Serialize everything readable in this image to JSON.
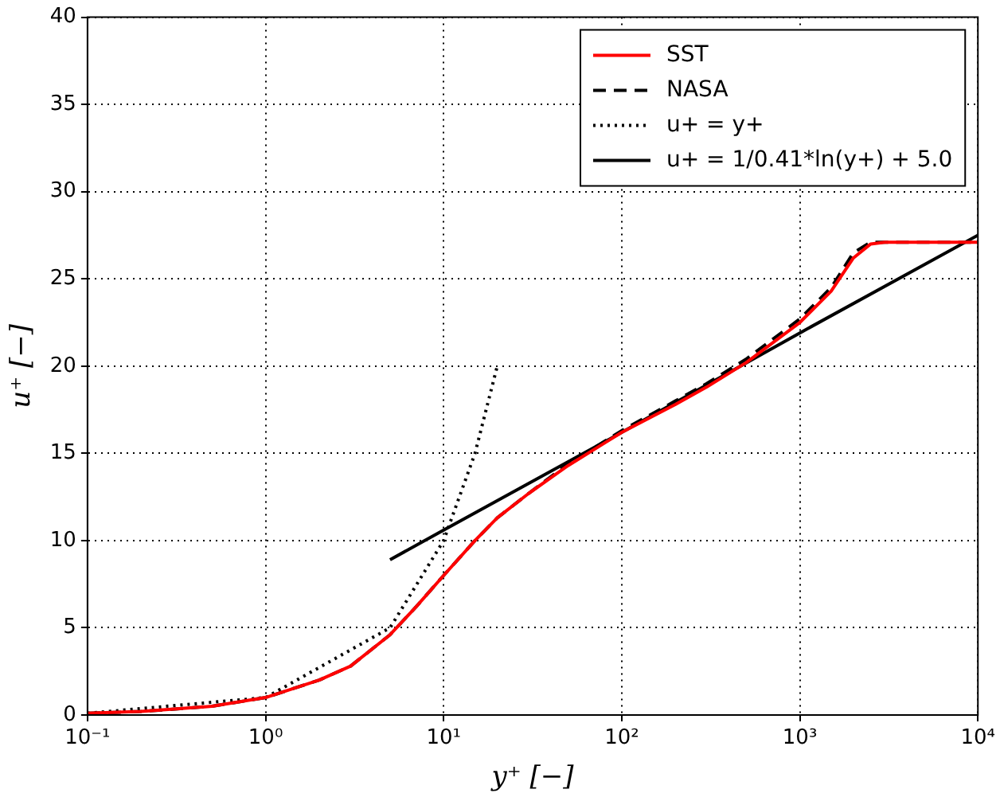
{
  "chart_data": {
    "type": "line",
    "xlabel": "y⁺ [−]",
    "ylabel": "u⁺ [−]",
    "log": "x",
    "grid": true,
    "legend": "top right",
    "marker": "none",
    "xlim": [
      0.1,
      10000
    ],
    "xticks": [
      {
        "value": 0.1,
        "label": "10⁻¹"
      },
      {
        "value": 1,
        "label": "10⁰"
      },
      {
        "value": 10,
        "label": "10¹"
      },
      {
        "value": 100,
        "label": "10²"
      },
      {
        "value": 1000,
        "label": "10³"
      },
      {
        "value": 10000,
        "label": "10⁴"
      }
    ],
    "ylim": [
      0,
      40
    ],
    "yticks": [
      0,
      5,
      10,
      15,
      20,
      25,
      30,
      35,
      40
    ],
    "series": [
      {
        "name": "SST",
        "color": "#ff0000",
        "line_style": "solid",
        "x": [
          0.1,
          0.2,
          0.5,
          1,
          2,
          3,
          5,
          7,
          10,
          15,
          20,
          30,
          50,
          100,
          200,
          300,
          500,
          1000,
          1500,
          2000,
          2500,
          3000,
          10000
        ],
        "values": [
          0.1,
          0.2,
          0.5,
          1.0,
          2.0,
          2.8,
          4.6,
          6.2,
          8.0,
          10.0,
          11.3,
          12.7,
          14.3,
          16.2,
          17.8,
          18.8,
          20.2,
          22.5,
          24.3,
          26.2,
          27.0,
          27.1,
          27.1
        ]
      },
      {
        "name": "NASA",
        "color": "#000000",
        "line_style": "dashed",
        "x": [
          0.1,
          0.2,
          0.5,
          1,
          2,
          3,
          5,
          7,
          10,
          15,
          20,
          30,
          50,
          100,
          200,
          300,
          500,
          1000,
          1500,
          2000,
          2500,
          3000,
          10000
        ],
        "values": [
          0.1,
          0.2,
          0.5,
          1.0,
          2.0,
          2.8,
          4.6,
          6.2,
          8.0,
          10.0,
          11.3,
          12.7,
          14.4,
          16.3,
          18.0,
          19.0,
          20.4,
          22.7,
          24.5,
          26.5,
          27.1,
          27.1,
          27.1
        ]
      },
      {
        "name": "u+ = y+",
        "color": "#000000",
        "line_style": "dotted",
        "x": [
          0.1,
          1,
          5,
          10,
          15,
          20
        ],
        "values": [
          0.1,
          1,
          5,
          10,
          15,
          20
        ]
      },
      {
        "name": "u+ = 1/0.41*ln(y+) + 5.0",
        "color": "#000000",
        "line_style": "solid",
        "x": [
          5,
          10,
          100,
          1000,
          10000
        ],
        "values": [
          8.9,
          10.6,
          16.2,
          21.9,
          27.5
        ]
      }
    ]
  }
}
